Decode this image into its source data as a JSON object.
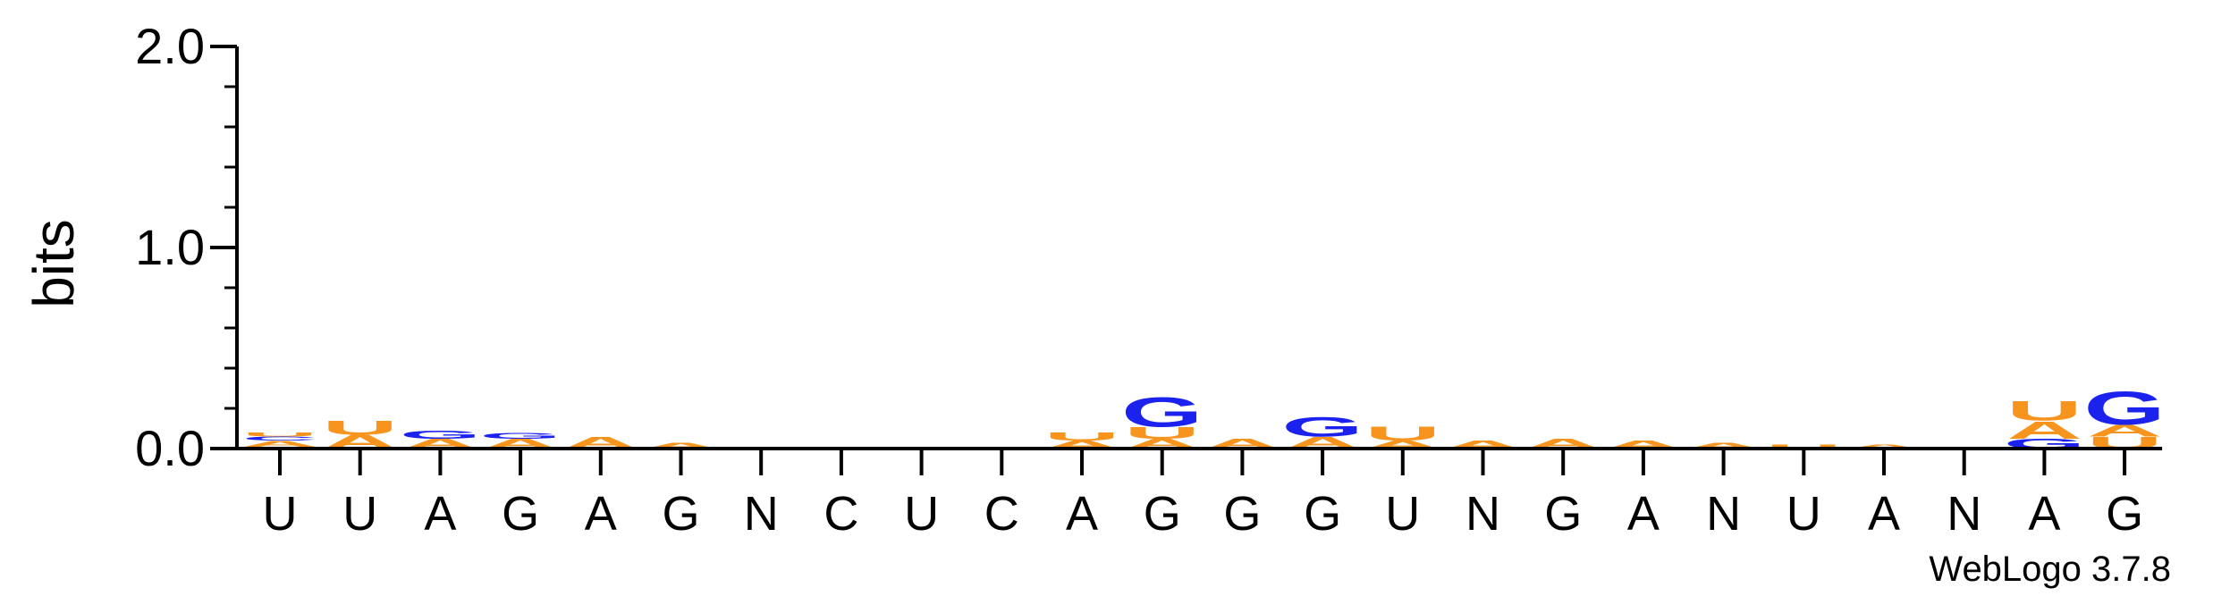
{
  "chart_data": {
    "type": "sequence_logo",
    "ylabel": "bits",
    "ylim": [
      0,
      2
    ],
    "yticks": [
      "0.0",
      "1.0",
      "2.0"
    ],
    "minor_step": 0.2,
    "positions": [
      "U",
      "U",
      "A",
      "G",
      "A",
      "G",
      "N",
      "C",
      "U",
      "C",
      "A",
      "G",
      "G",
      "G",
      "U",
      "N",
      "G",
      "A",
      "N",
      "U",
      "A",
      "N",
      "A",
      "G"
    ],
    "stacks": [
      [
        [
          "G",
          0.01
        ],
        [
          "A",
          0.03
        ],
        [
          "C",
          0.02
        ],
        [
          "U",
          0.02
        ]
      ],
      [
        [
          "A",
          0.07
        ],
        [
          "U",
          0.07
        ]
      ],
      [
        [
          "A",
          0.05
        ],
        [
          "G",
          0.04
        ]
      ],
      [
        [
          "A",
          0.05
        ],
        [
          "G",
          0.03
        ]
      ],
      [
        [
          "A",
          0.06
        ]
      ],
      [
        [
          "A",
          0.03
        ]
      ],
      [],
      [],
      [],
      [],
      [
        [
          "A",
          0.04
        ],
        [
          "U",
          0.04
        ]
      ],
      [
        [
          "A",
          0.05
        ],
        [
          "U",
          0.06
        ],
        [
          "G",
          0.15
        ]
      ],
      [
        [
          "A",
          0.05
        ]
      ],
      [
        [
          "A",
          0.06
        ],
        [
          "G",
          0.1
        ]
      ],
      [
        [
          "A",
          0.04
        ],
        [
          "U",
          0.07
        ]
      ],
      [
        [
          "A",
          0.04
        ]
      ],
      [
        [
          "A",
          0.05
        ]
      ],
      [
        [
          "A",
          0.04
        ]
      ],
      [
        [
          "A",
          0.03
        ]
      ],
      [
        [
          "U",
          0.02
        ]
      ],
      [
        [
          "A",
          0.02
        ]
      ],
      [],
      [
        [
          "G",
          0.05
        ],
        [
          "A",
          0.09
        ],
        [
          "U",
          0.1
        ]
      ],
      [
        [
          "U",
          0.06
        ],
        [
          "A",
          0.06
        ],
        [
          "G",
          0.17
        ]
      ]
    ],
    "colors": {
      "A": "#f7941d",
      "U": "#f7941d",
      "G": "#1b22ee",
      "C": "#1b22ee"
    },
    "credit": "WebLogo 3.7.8"
  }
}
